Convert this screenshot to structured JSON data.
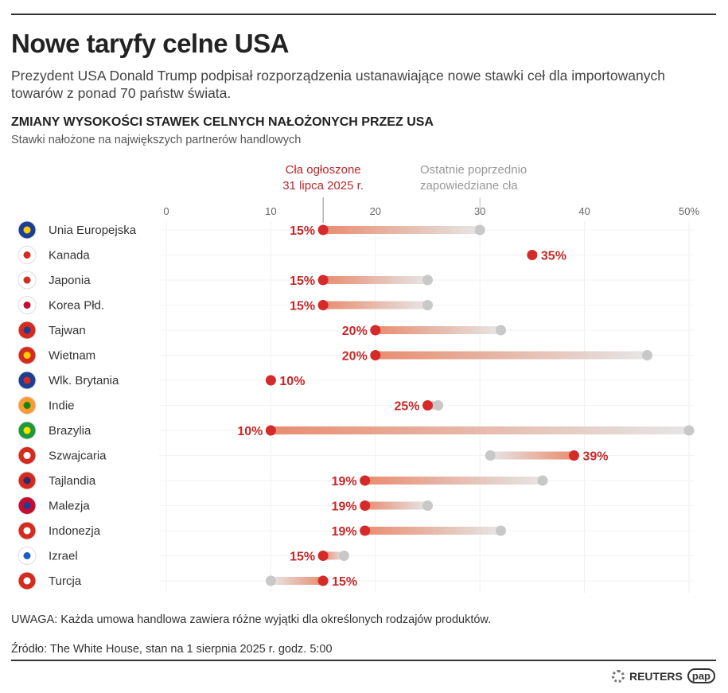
{
  "title": "Nowe taryfy celne USA",
  "subtitle": "Prezydent USA Donald Trump podpisał rozporządzenia ustanawiające nowe stawki ceł dla importowanych towarów z ponad 70 państw świata.",
  "chart_data": {
    "type": "dumbbell",
    "title": "ZMIANY WYSOKOŚCI STAWEK CELNYCH NAŁOŻONYCH PRZEZ USA",
    "subtitle": "Stawki nałożone na największych partnerów handlowych",
    "legend": {
      "current": "Cła ogłoszone\n31 lipca 2025 r.",
      "previous": "Ostatnie poprzednio\nzapowiedziane cła"
    },
    "x_ticks": [
      "0",
      "10",
      "20",
      "30",
      "40",
      "50%"
    ],
    "xlim": [
      0,
      50
    ],
    "grid": true,
    "colors": {
      "current": "#d42a2a",
      "previous": "#c8c8c8",
      "bar_start": "#e88d70"
    },
    "categories": [
      "Unia Europejska",
      "Kanada",
      "Japonia",
      "Korea Płd.",
      "Tajwan",
      "Wietnam",
      "Wlk. Brytania",
      "Indie",
      "Brazylia",
      "Szwajcaria",
      "Tajlandia",
      "Malezja",
      "Indonezja",
      "Izrael",
      "Turcja"
    ],
    "flags": [
      "eu",
      "ca",
      "jp",
      "kr",
      "tw",
      "vn",
      "gb",
      "in",
      "br",
      "ch",
      "th",
      "my",
      "id",
      "il",
      "tr"
    ],
    "series": [
      {
        "name": "Cła ogłoszone 31 lipca 2025 r.",
        "values": [
          15,
          35,
          15,
          15,
          20,
          20,
          10,
          25,
          10,
          39,
          19,
          19,
          19,
          15,
          15
        ],
        "labels": [
          "15%",
          "35%",
          "15%",
          "15%",
          "20%",
          "20%",
          "10%",
          "25%",
          "10%",
          "39%",
          "19%",
          "19%",
          "19%",
          "15%",
          "15%"
        ]
      },
      {
        "name": "Ostatnie poprzednio zapowiedziane cła",
        "values": [
          30,
          null,
          25,
          25,
          32,
          46,
          null,
          26,
          50,
          31,
          36,
          25,
          32,
          17,
          10
        ]
      }
    ]
  },
  "note": "UWAGA: Każda umowa handlowa zawiera różne wyjątki dla określonych rodzajów produktów.",
  "source": "Źródło: The White House, stan na 1 sierpnia 2025 r. godz. 5:00",
  "logos": {
    "reuters": "REUTERS",
    "pap": "pap"
  }
}
